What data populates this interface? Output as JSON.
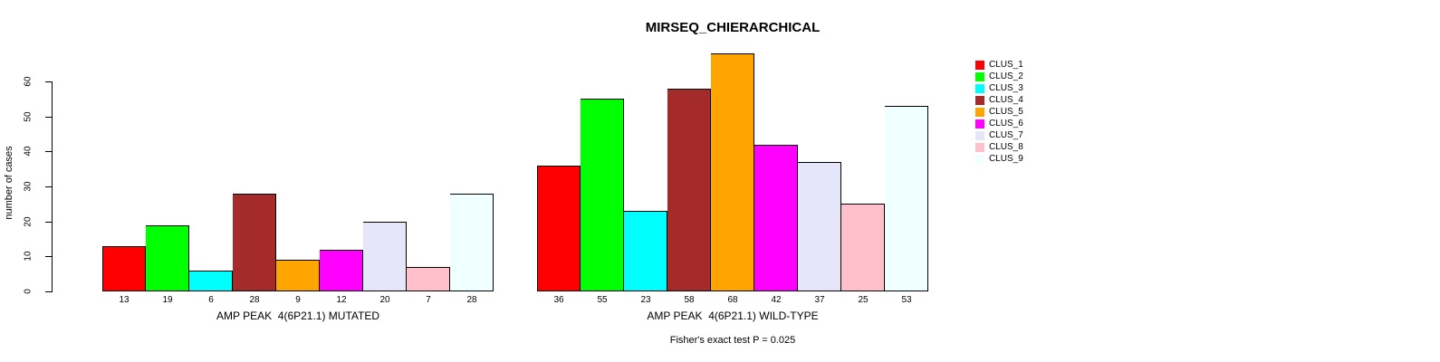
{
  "page": {
    "background_color": "#FFFFFF",
    "text_color": "#000000"
  },
  "chart_data": {
    "type": "bar",
    "title": "MIRSEQ_CHIERARCHICAL",
    "ylabel": "number of cases",
    "xlabel": "",
    "caption": "Fisher's exact test P = 0.025",
    "yticks": [
      0,
      10,
      20,
      30,
      40,
      50,
      60
    ],
    "ylim": [
      0,
      68
    ],
    "grid": false,
    "legend_position": "right",
    "bar_value_labels_shown": true,
    "categories": [
      "AMP PEAK  4(6P21.1) MUTATED",
      "AMP PEAK  4(6P21.1) WILD-TYPE"
    ],
    "series": [
      {
        "name": "CLUS_1",
        "color": "#FF0000",
        "values": [
          13,
          36
        ]
      },
      {
        "name": "CLUS_2",
        "color": "#00FF00",
        "values": [
          19,
          55
        ]
      },
      {
        "name": "CLUS_3",
        "color": "#00FFFF",
        "values": [
          6,
          23
        ]
      },
      {
        "name": "CLUS_4",
        "color": "#A52A2A",
        "values": [
          28,
          58
        ]
      },
      {
        "name": "CLUS_5",
        "color": "#FFA500",
        "values": [
          9,
          68
        ]
      },
      {
        "name": "CLUS_6",
        "color": "#FF00FF",
        "values": [
          12,
          42
        ]
      },
      {
        "name": "CLUS_7",
        "color": "#E6E6FA",
        "values": [
          20,
          37
        ]
      },
      {
        "name": "CLUS_8",
        "color": "#FFC0CB",
        "values": [
          7,
          25
        ]
      },
      {
        "name": "CLUS_9",
        "color": "#F0FFFF",
        "values": [
          28,
          53
        ]
      }
    ],
    "axis_color": "#000000",
    "bar_border_color": "#000000"
  }
}
